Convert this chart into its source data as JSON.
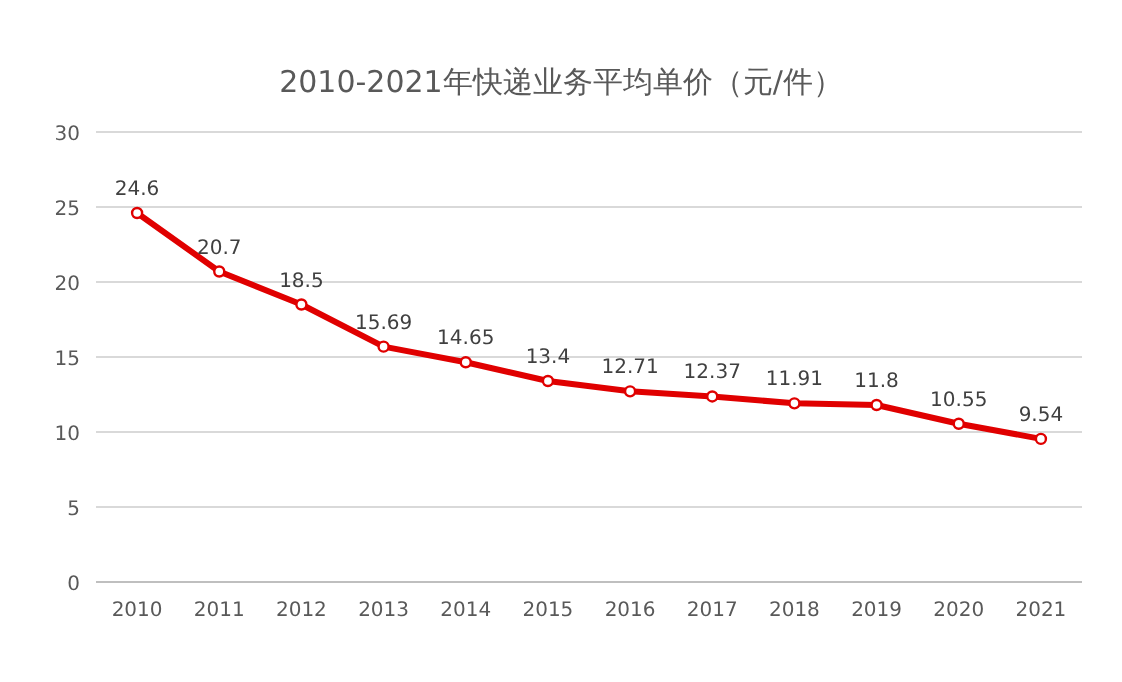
{
  "chart_data": {
    "type": "line",
    "title": "2010-2021年快递业务平均单价（元/件）",
    "categories": [
      "2010",
      "2011",
      "2012",
      "2013",
      "2014",
      "2015",
      "2016",
      "2017",
      "2018",
      "2019",
      "2020",
      "2021"
    ],
    "values": [
      24.6,
      20.7,
      18.5,
      15.69,
      14.65,
      13.4,
      12.71,
      12.37,
      11.91,
      11.8,
      10.55,
      9.54
    ],
    "color": "#e00000",
    "ylim": [
      0,
      30
    ],
    "yticks": [
      0,
      5,
      10,
      15,
      20,
      25,
      30
    ],
    "grid": "y",
    "marker": "circle",
    "data_labels": true
  }
}
